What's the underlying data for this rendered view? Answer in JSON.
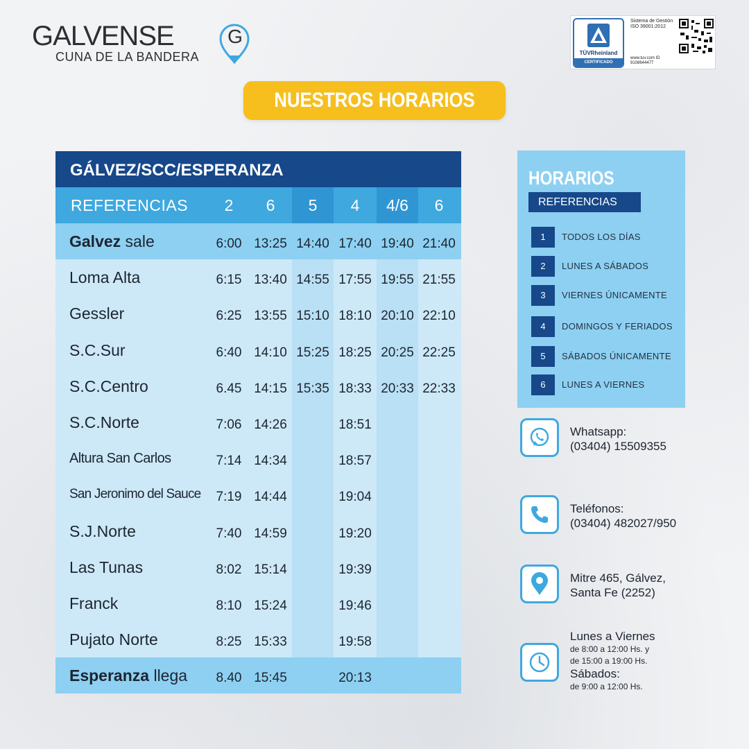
{
  "brand": {
    "name": "GALVENSE",
    "tagline": "CUNA DE LA BANDERA",
    "pin_letter": "G",
    "color_dark": "#2e2e33",
    "color_accent": "#3ea8df"
  },
  "certification": {
    "brand": "TÜVRheinland",
    "label": "CERTIFICADO",
    "system_text": "Sistema de Gestión ISO 39001:2012",
    "url_text": "www.tuv.com ID 9108644477"
  },
  "banner": {
    "title": "NUESTROS HORARIOS",
    "color": "#f6bf1e"
  },
  "schedule": {
    "route": "GÁLVEZ/SCC/ESPERANZA",
    "ref_label": "REFERENCIAS",
    "columns": [
      "2",
      "6",
      "5",
      "4",
      "4/6",
      "6"
    ],
    "colors": {
      "title": "#16488a",
      "header": "#3ea8df",
      "light": "#cde9f8",
      "mid": "#8dd0f2"
    },
    "rows": [
      {
        "stop_bold": "Galvez",
        "stop_rest": " sale",
        "times": [
          "6:00",
          "13:25",
          "14:40",
          "17:40",
          "19:40",
          "21:40"
        ]
      },
      {
        "stop": "Loma Alta",
        "times": [
          "6:15",
          "13:40",
          "14:55",
          "17:55",
          "19:55",
          "21:55"
        ]
      },
      {
        "stop": "Gessler",
        "times": [
          "6:25",
          "13:55",
          "15:10",
          "18:10",
          "20:10",
          "22:10"
        ]
      },
      {
        "stop": "S.C.Sur",
        "times": [
          "6:40",
          "14:10",
          "15:25",
          "18:25",
          "20:25",
          "22:25"
        ]
      },
      {
        "stop": "S.C.Centro",
        "times": [
          "6.45",
          "14:15",
          "15:35",
          "18:33",
          "20:33",
          "22:33"
        ]
      },
      {
        "stop": "S.C.Norte",
        "times": [
          "7:06",
          "14:26",
          "",
          "18:51",
          "",
          ""
        ]
      },
      {
        "stop": "Altura San Carlos",
        "times": [
          "7:14",
          "14:34",
          "",
          "18:57",
          "",
          ""
        ]
      },
      {
        "stop": "San Jeronimo del Sauce",
        "times": [
          "7:19",
          "14:44",
          "",
          "19:04",
          "",
          ""
        ]
      },
      {
        "stop": "S.J.Norte",
        "times": [
          "7:40",
          "14:59",
          "",
          "19:20",
          "",
          ""
        ]
      },
      {
        "stop": "Las Tunas",
        "times": [
          "8:02",
          "15:14",
          "",
          "19:39",
          "",
          ""
        ]
      },
      {
        "stop": "Franck",
        "times": [
          "8:10",
          "15:24",
          "",
          "19:46",
          "",
          ""
        ]
      },
      {
        "stop": "Pujato Norte",
        "times": [
          "8:25",
          "15:33",
          "",
          "19:58",
          "",
          ""
        ]
      },
      {
        "stop_bold": "Esperanza",
        "stop_rest": " llega",
        "times": [
          "8.40",
          "15:45",
          "",
          "20:13",
          "",
          ""
        ]
      }
    ]
  },
  "legend": {
    "title": "HORARIOS",
    "subtitle": "REFERENCIAS",
    "items": [
      {
        "num": "1",
        "text": "TODOS LOS DÍAS"
      },
      {
        "num": "2",
        "text": "LUNES A SÁBADOS"
      },
      {
        "num": "3",
        "text": "VIERNES ÚNICAMENTE"
      },
      {
        "num": "4",
        "text": "DOMINGOS Y FERIADOS"
      },
      {
        "num": "5",
        "text": "SÁBADOS ÚNICAMENTE"
      },
      {
        "num": "6",
        "text": "LUNES A VIERNES"
      }
    ]
  },
  "contact": {
    "whatsapp": {
      "icon": "whatsapp-icon",
      "label": "Whatsapp:",
      "value": "(03404) 15509355"
    },
    "phone": {
      "icon": "phone-icon",
      "label": "Teléfonos:",
      "value": "(03404) 482027/950"
    },
    "address": {
      "icon": "location-pin-icon",
      "line1": "Mitre 465, Gálvez,",
      "line2": "Santa Fe (2252)"
    },
    "hours": {
      "icon": "clock-icon",
      "weekdays_label": "Lunes a Viernes",
      "weekdays_line1": "de 8:00 a 12:00 Hs. y",
      "weekdays_line2": "de 15:00 a 19:00 Hs.",
      "saturday_label": "Sábados:",
      "saturday_line": "de 9:00 a 12:00 Hs."
    }
  }
}
